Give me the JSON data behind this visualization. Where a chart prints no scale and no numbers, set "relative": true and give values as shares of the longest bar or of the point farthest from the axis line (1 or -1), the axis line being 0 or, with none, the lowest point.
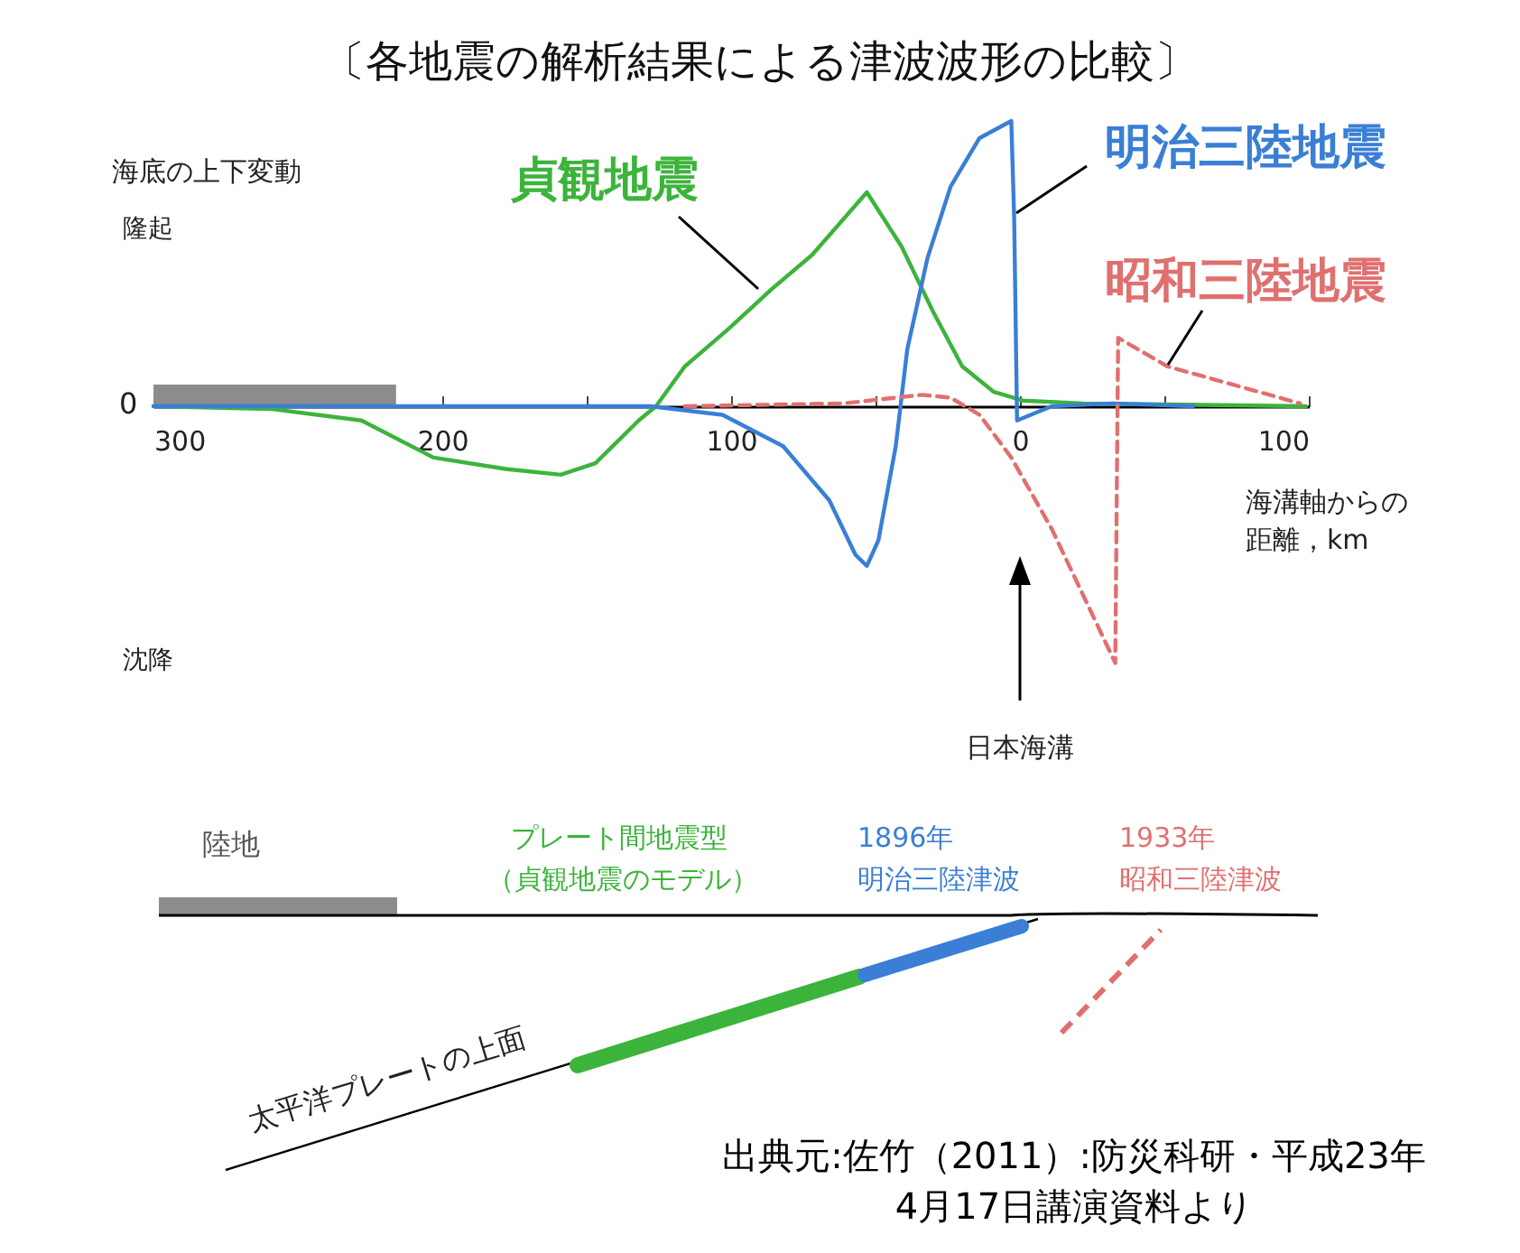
{
  "chart_data": {
    "type": "line",
    "title": "〔各地震の解析結果による津波波形の比較〕",
    "ylabel": "海底の上下変動",
    "xlabel": "海溝軸からの距離，km",
    "relative": true,
    "xlim": [
      300,
      -100
    ],
    "xticks": [
      300,
      {
        "value": 250,
        "label": null
      },
      200,
      {
        "value": 150,
        "label": null
      },
      100,
      {
        "value": 50,
        "label": null
      },
      0,
      {
        "value": -50,
        "label": null
      },
      {
        "value": -100,
        "label": "100"
      }
    ],
    "grid": false,
    "series": [
      {
        "type": "area",
        "color": "#8c8c8c",
        "x": [
          300,
          216
        ],
        "values": [
          0.076,
          0.076
        ]
      },
      {
        "name": "貞観地震",
        "color": "#3cb43c",
        "x": [
          300,
          259,
          228,
          203,
          178,
          159,
          147,
          132,
          126,
          116,
          101,
          86,
          72,
          53,
          41,
          30,
          20,
          9,
          -1,
          -22,
          -99
        ],
        "values": [
          0,
          -0.01,
          -0.05,
          -0.18,
          -0.22,
          -0.24,
          -0.2,
          -0.05,
          0,
          0.14,
          0.27,
          0.41,
          0.53,
          0.75,
          0.56,
          0.33,
          0.14,
          0.05,
          0.02,
          0.01,
          0
        ]
      },
      {
        "name": "明治三陸地震",
        "color": "#3a7fd5",
        "x": [
          300,
          128,
          103,
          82,
          66,
          57,
          53,
          49,
          43,
          39,
          32,
          24,
          14,
          3,
          2,
          1,
          -11,
          -32,
          -60
        ],
        "values": [
          0,
          0,
          -0.03,
          -0.14,
          -0.33,
          -0.52,
          -0.56,
          -0.47,
          -0.14,
          0.2,
          0.52,
          0.77,
          0.94,
          1,
          0.66,
          -0.05,
          0,
          0.01,
          0
        ]
      },
      {
        "name": "昭和三陸地震",
        "color": "#e07070",
        "line_style": "dashed",
        "x": [
          116,
          61,
          34,
          24,
          14,
          3,
          -11,
          -33,
          -34,
          -51,
          -97
        ],
        "values": [
          0,
          0.01,
          0.04,
          0.03,
          -0.03,
          -0.18,
          -0.43,
          -0.9,
          0.24,
          0.14,
          0.01
        ]
      }
    ],
    "annotations": [
      "隆起",
      "0",
      "沈降",
      {
        "text": "日本海溝",
        "x": 0
      },
      "陸地",
      "プレート間地震型",
      "（貞観地震のモデル）",
      "1896年",
      "明治三陸津波",
      "1933年",
      "昭和三陸津波",
      "太平洋プレートの上面",
      "出典元:佐竹（2011）:防災科研・平成23年",
      "4月17日講演資料より"
    ]
  }
}
